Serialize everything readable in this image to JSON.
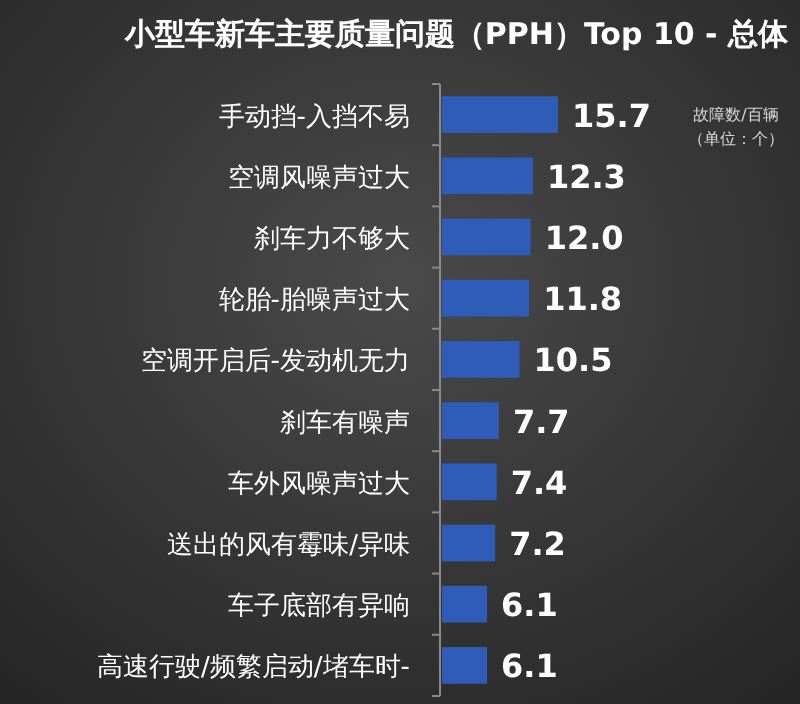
{
  "chart_data": {
    "type": "bar",
    "orientation": "horizontal",
    "title": "小型车新车主要质量问题（PPH）Top 10 - 总体",
    "categories": [
      "手动挡-入挡不易",
      "空调风噪声过大",
      "刹车力不够大",
      "轮胎-胎噪声过大",
      "空调开启后-发动机无力",
      "刹车有噪声",
      "车外风噪声过大",
      "送出的风有霉味/异味",
      "车子底部有异响",
      "高速行驶/频繁启动/堵车时-"
    ],
    "values": [
      15.7,
      12.3,
      12.0,
      11.8,
      10.5,
      7.7,
      7.4,
      7.2,
      6.1,
      6.1
    ],
    "value_labels": [
      "15.7",
      "12.3",
      "12.0",
      "11.8",
      "10.5",
      "7.7",
      "7.4",
      "7.2",
      "6.1",
      "6.1"
    ],
    "color": "#2e5cb8",
    "annotations": [
      "故障数/百辆",
      "（单位：个）"
    ]
  }
}
